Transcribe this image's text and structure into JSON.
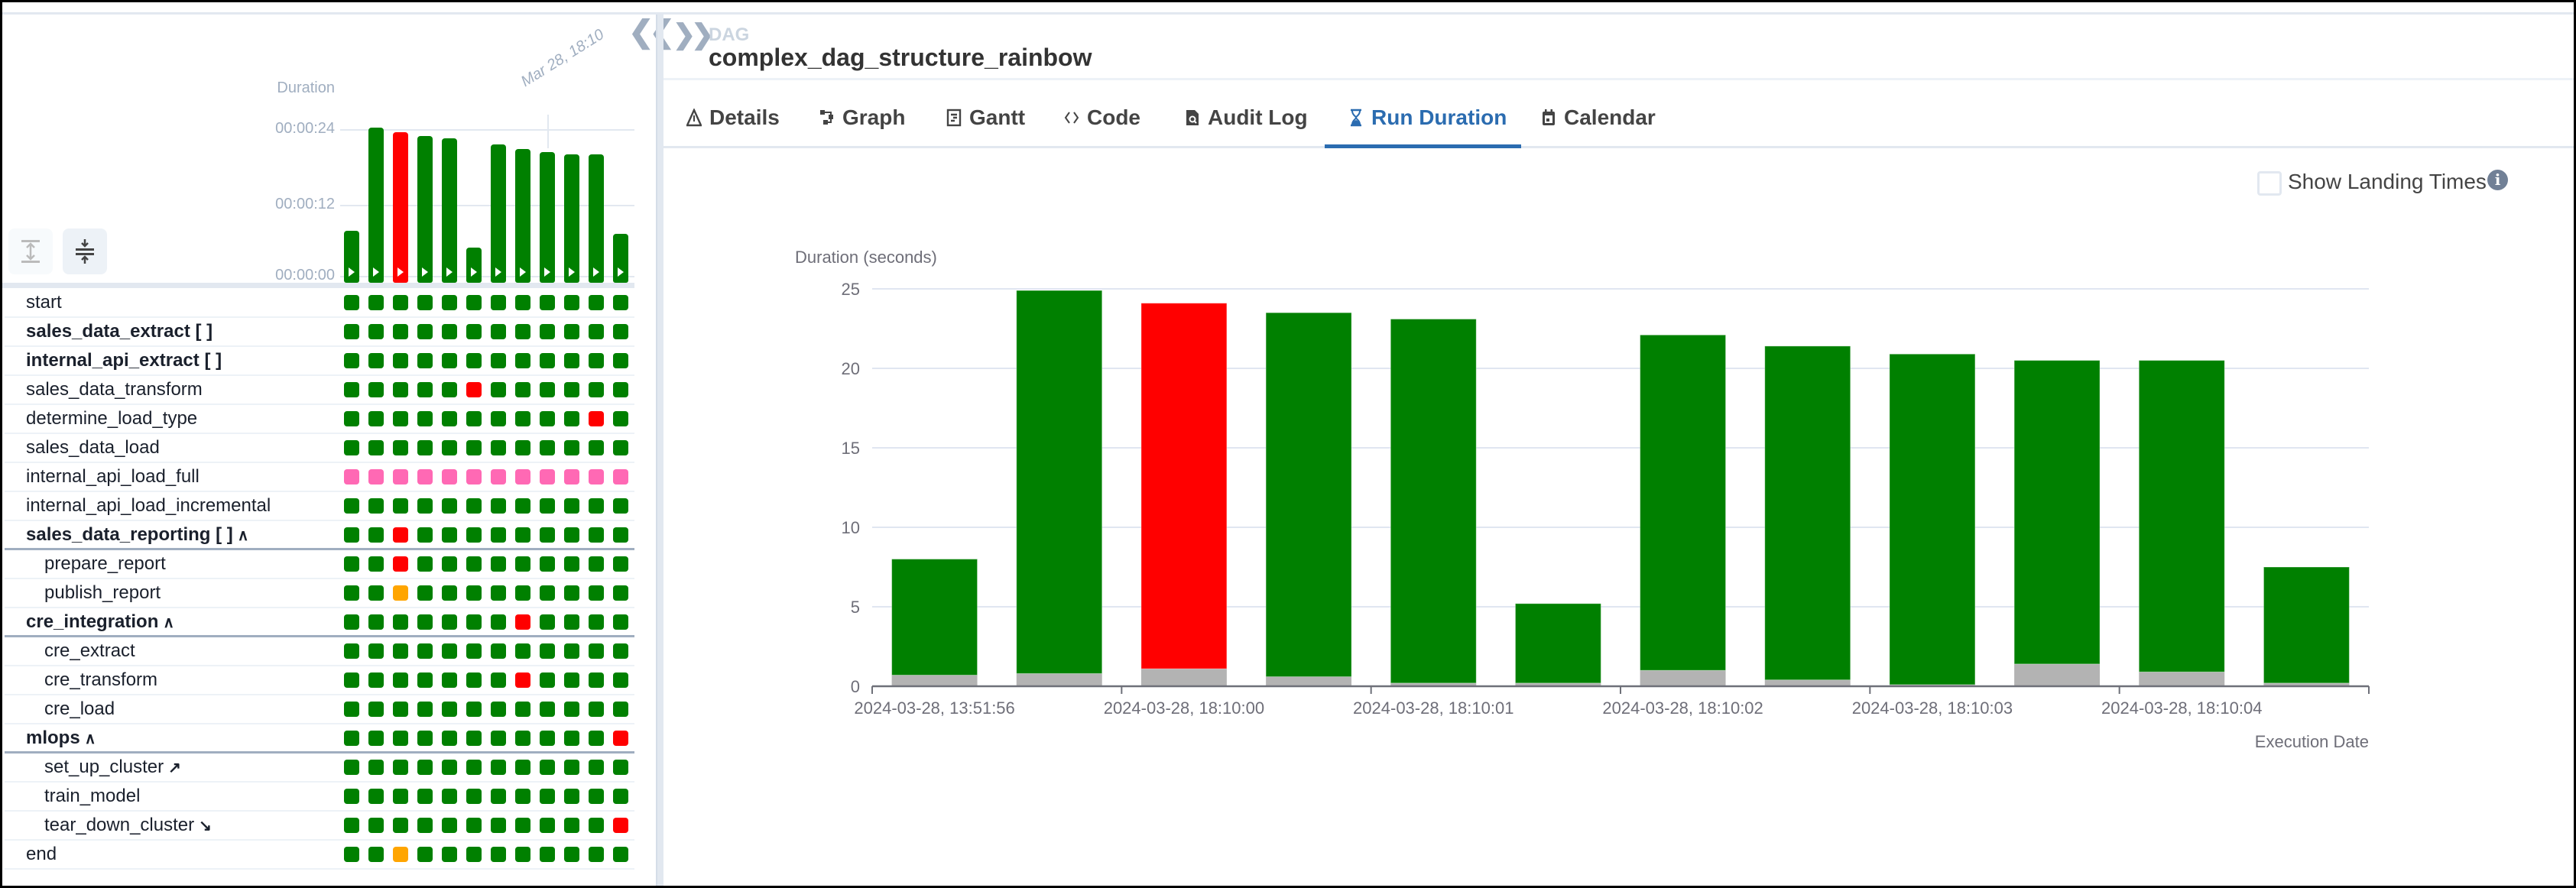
{
  "sidebar": {
    "collapse_icon": "double-chevron-left-icon",
    "mini_chart": {
      "title": "Duration",
      "y_ticks": [
        "00:00:24",
        "00:00:12",
        "00:00:00"
      ],
      "hover_label": "Mar 28, 18:10",
      "hover_run_index": 8
    },
    "grid": {
      "state_colors": {
        "success": "#008000",
        "failed": "#ff0000",
        "skipped": "#ff69b4",
        "upstream_failed": "#ffa500"
      },
      "rows": [
        {
          "label": "start",
          "bold": false,
          "indent": false,
          "icon": "",
          "states": [
            "success",
            "success",
            "success",
            "success",
            "success",
            "success",
            "success",
            "success",
            "success",
            "success",
            "success",
            "success"
          ]
        },
        {
          "label": "sales_data_extract [ ]",
          "bold": true,
          "indent": false,
          "icon": "",
          "states": [
            "success",
            "success",
            "success",
            "success",
            "success",
            "success",
            "success",
            "success",
            "success",
            "success",
            "success",
            "success"
          ]
        },
        {
          "label": "internal_api_extract [ ]",
          "bold": true,
          "indent": false,
          "icon": "",
          "states": [
            "success",
            "success",
            "success",
            "success",
            "success",
            "success",
            "success",
            "success",
            "success",
            "success",
            "success",
            "success"
          ]
        },
        {
          "label": "sales_data_transform",
          "bold": false,
          "indent": false,
          "icon": "",
          "states": [
            "success",
            "success",
            "success",
            "success",
            "success",
            "failed",
            "success",
            "success",
            "success",
            "success",
            "success",
            "success"
          ]
        },
        {
          "label": "determine_load_type",
          "bold": false,
          "indent": false,
          "icon": "",
          "states": [
            "success",
            "success",
            "success",
            "success",
            "success",
            "success",
            "success",
            "success",
            "success",
            "success",
            "failed",
            "success"
          ]
        },
        {
          "label": "sales_data_load",
          "bold": false,
          "indent": false,
          "icon": "",
          "states": [
            "success",
            "success",
            "success",
            "success",
            "success",
            "success",
            "success",
            "success",
            "success",
            "success",
            "success",
            "success"
          ]
        },
        {
          "label": "internal_api_load_full",
          "bold": false,
          "indent": false,
          "icon": "",
          "states": [
            "skipped",
            "skipped",
            "skipped",
            "skipped",
            "skipped",
            "skipped",
            "skipped",
            "skipped",
            "skipped",
            "skipped",
            "skipped",
            "skipped"
          ]
        },
        {
          "label": "internal_api_load_incremental",
          "bold": false,
          "indent": false,
          "icon": "",
          "states": [
            "success",
            "success",
            "success",
            "success",
            "success",
            "success",
            "success",
            "success",
            "success",
            "success",
            "success",
            "success"
          ]
        },
        {
          "label": "sales_data_reporting [ ]",
          "bold": true,
          "indent": false,
          "icon": "chevron-up",
          "open": true,
          "states": [
            "success",
            "success",
            "failed",
            "success",
            "success",
            "success",
            "success",
            "success",
            "success",
            "success",
            "success",
            "success"
          ]
        },
        {
          "label": "prepare_report",
          "bold": false,
          "indent": true,
          "icon": "",
          "states": [
            "success",
            "success",
            "failed",
            "success",
            "success",
            "success",
            "success",
            "success",
            "success",
            "success",
            "success",
            "success"
          ]
        },
        {
          "label": "publish_report",
          "bold": false,
          "indent": true,
          "icon": "",
          "states": [
            "success",
            "success",
            "upstream_failed",
            "success",
            "success",
            "success",
            "success",
            "success",
            "success",
            "success",
            "success",
            "success"
          ]
        },
        {
          "label": "cre_integration",
          "bold": true,
          "indent": false,
          "icon": "chevron-up",
          "open": true,
          "states": [
            "success",
            "success",
            "success",
            "success",
            "success",
            "success",
            "success",
            "failed",
            "success",
            "success",
            "success",
            "success"
          ]
        },
        {
          "label": "cre_extract",
          "bold": false,
          "indent": true,
          "icon": "",
          "states": [
            "success",
            "success",
            "success",
            "success",
            "success",
            "success",
            "success",
            "success",
            "success",
            "success",
            "success",
            "success"
          ]
        },
        {
          "label": "cre_transform",
          "bold": false,
          "indent": true,
          "icon": "",
          "states": [
            "success",
            "success",
            "success",
            "success",
            "success",
            "success",
            "success",
            "failed",
            "success",
            "success",
            "success",
            "success"
          ]
        },
        {
          "label": "cre_load",
          "bold": false,
          "indent": true,
          "icon": "",
          "states": [
            "success",
            "success",
            "success",
            "success",
            "success",
            "success",
            "success",
            "success",
            "success",
            "success",
            "success",
            "success"
          ]
        },
        {
          "label": "mlops",
          "bold": true,
          "indent": false,
          "icon": "chevron-up",
          "open": true,
          "states": [
            "success",
            "success",
            "success",
            "success",
            "success",
            "success",
            "success",
            "success",
            "success",
            "success",
            "success",
            "failed"
          ]
        },
        {
          "label": "set_up_cluster",
          "bold": false,
          "indent": true,
          "icon": "setup-arrow",
          "states": [
            "success",
            "success",
            "success",
            "success",
            "success",
            "success",
            "success",
            "success",
            "success",
            "success",
            "success",
            "success"
          ]
        },
        {
          "label": "train_model",
          "bold": false,
          "indent": true,
          "icon": "",
          "states": [
            "success",
            "success",
            "success",
            "success",
            "success",
            "success",
            "success",
            "success",
            "success",
            "success",
            "success",
            "success"
          ]
        },
        {
          "label": "tear_down_cluster",
          "bold": false,
          "indent": true,
          "icon": "teardown-arrow",
          "states": [
            "success",
            "success",
            "success",
            "success",
            "success",
            "success",
            "success",
            "success",
            "success",
            "success",
            "success",
            "failed"
          ]
        },
        {
          "label": "end",
          "bold": false,
          "indent": false,
          "icon": "",
          "states": [
            "success",
            "success",
            "upstream_failed",
            "success",
            "success",
            "success",
            "success",
            "success",
            "success",
            "success",
            "success",
            "success"
          ]
        }
      ]
    }
  },
  "header": {
    "dag_label": "DAG",
    "dag_id": "complex_dag_structure_rainbow"
  },
  "tabs": [
    {
      "label": "Details",
      "icon": "warning-triangle-icon",
      "active": false
    },
    {
      "label": "Graph",
      "icon": "graph-icon",
      "active": false
    },
    {
      "label": "Gantt",
      "icon": "gantt-icon",
      "active": false
    },
    {
      "label": "Code",
      "icon": "code-icon",
      "active": false
    },
    {
      "label": "Audit Log",
      "icon": "audit-log-icon",
      "active": false
    },
    {
      "label": "Run Duration",
      "icon": "hourglass-icon",
      "active": true
    },
    {
      "label": "Calendar",
      "icon": "calendar-icon",
      "active": false
    }
  ],
  "options": {
    "show_landing_times_label": "Show Landing Times",
    "show_landing_times_checked": false
  },
  "chart_data": {
    "type": "bar",
    "stacked": true,
    "ylabel": "Duration (seconds)",
    "xlabel": "Execution Date",
    "ylim": [
      0,
      25
    ],
    "y_ticks": [
      0,
      5,
      10,
      15,
      20,
      25
    ],
    "x_tick_labels": [
      "2024-03-28, 13:51:56",
      "2024-03-28, 18:10:00",
      "2024-03-28, 18:10:01",
      "2024-03-28, 18:10:02",
      "2024-03-28, 18:10:03",
      "2024-03-28, 18:10:04"
    ],
    "run_states": [
      "success",
      "success",
      "failed",
      "success",
      "success",
      "success",
      "success",
      "success",
      "success",
      "success",
      "success",
      "success"
    ],
    "series": [
      {
        "values": [
          0.7,
          0.8,
          1.1,
          0.6,
          0.2,
          0.2,
          1.0,
          0.4,
          0.1,
          1.4,
          0.9,
          0.2
        ],
        "color": "#b3b3b3"
      },
      {
        "values": [
          7.3,
          24.1,
          23.0,
          22.9,
          22.9,
          5.0,
          21.1,
          21.0,
          20.8,
          19.1,
          19.6,
          7.3
        ],
        "color": "state"
      }
    ],
    "grid": true,
    "legend": "none"
  }
}
